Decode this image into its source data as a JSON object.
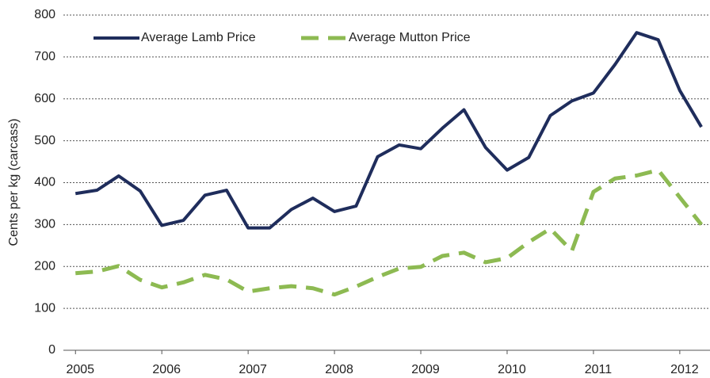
{
  "chart_data": {
    "type": "line",
    "y_label": "Cents per kg (carcass)",
    "x": [
      2005,
      2005.25,
      2005.5,
      2005.75,
      2006,
      2006.25,
      2006.5,
      2006.75,
      2007,
      2007.25,
      2007.5,
      2007.75,
      2008,
      2008.25,
      2008.5,
      2008.75,
      2009,
      2009.25,
      2009.5,
      2009.75,
      2010,
      2010.25,
      2010.5,
      2010.75,
      2011,
      2011.25,
      2011.5,
      2011.75,
      2012,
      2012.25
    ],
    "series": [
      {
        "name": "Average Lamb Price",
        "color": "#1f2d5c",
        "dashed": false,
        "values": [
          374,
          382,
          416,
          380,
          298,
          310,
          370,
          382,
          292,
          292,
          336,
          363,
          331,
          344,
          462,
          490,
          481,
          530,
          574,
          484,
          430,
          460,
          560,
          595,
          614,
          682,
          758,
          741,
          620,
          533
        ]
      },
      {
        "name": "Average Mutton Price",
        "color": "#8dba52",
        "dashed": true,
        "values": [
          184,
          188,
          201,
          168,
          150,
          162,
          180,
          169,
          140,
          148,
          153,
          148,
          133,
          152,
          175,
          195,
          199,
          225,
          233,
          210,
          220,
          258,
          290,
          237,
          378,
          410,
          417,
          430,
          365,
          300
        ]
      }
    ],
    "xlim": [
      2004.86,
      2012.35
    ],
    "xticks": [
      2005,
      2006,
      2007,
      2008,
      2009,
      2010,
      2011,
      2012
    ],
    "ylim": [
      0,
      800
    ],
    "yticks": [
      0,
      100,
      200,
      300,
      400,
      500,
      600,
      700,
      800
    ],
    "grid": true,
    "legend": "top-left"
  }
}
